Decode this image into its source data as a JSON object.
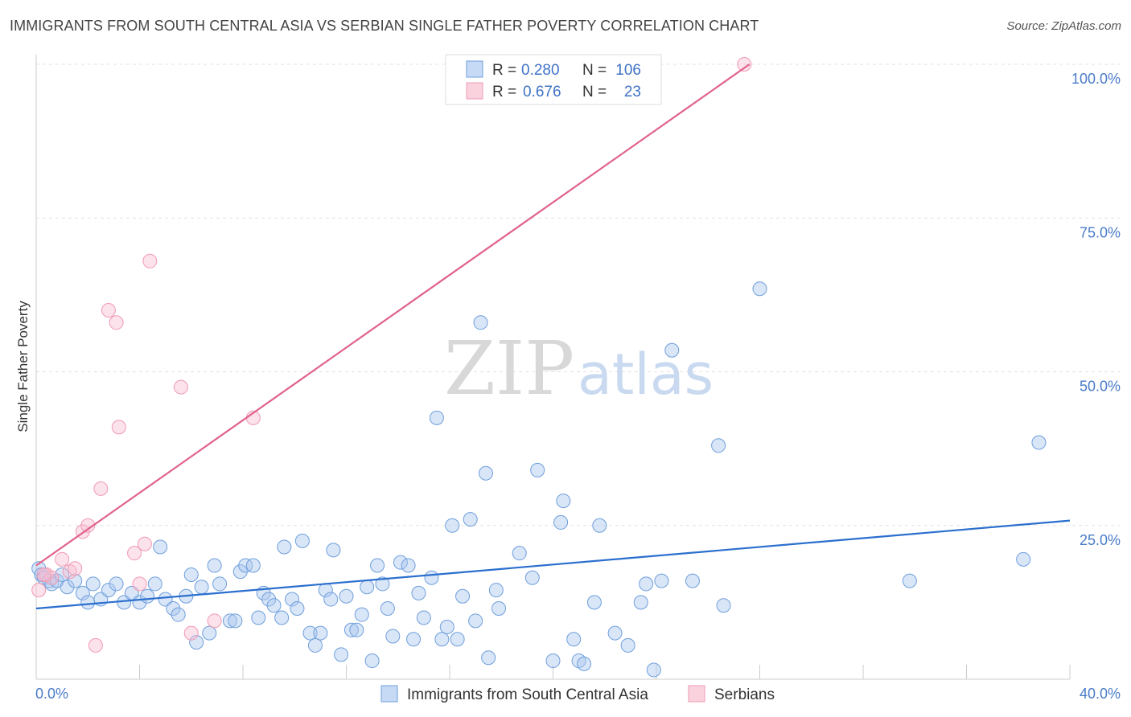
{
  "title": "IMMIGRANTS FROM SOUTH CENTRAL ASIA VS SERBIAN SINGLE FATHER POVERTY CORRELATION CHART",
  "source": "Source: ZipAtlas.com",
  "watermark": {
    "zip": "ZIP",
    "atlas": "atlas"
  },
  "colors": {
    "blue": "#6f9fdc",
    "blue_line": "#2b6fce",
    "pink": "#f09ab4",
    "pink_line": "#e0628b"
  },
  "chart_data": {
    "type": "scatter",
    "ylabel": "Single Father Poverty",
    "xlim": [
      0,
      40
    ],
    "ylim": [
      0,
      100
    ],
    "x_tick_labels": [
      "0.0%",
      "40.0%"
    ],
    "y_ticks": [
      {
        "value": 25,
        "label": "25.0%"
      },
      {
        "value": 50,
        "label": "50.0%"
      },
      {
        "value": 75,
        "label": "75.0%"
      },
      {
        "value": 100,
        "label": "100.0%"
      }
    ],
    "legend": [
      {
        "r_label": "R =",
        "r_value": "0.280",
        "n_label": "N =",
        "n_value": "106"
      },
      {
        "r_label": "R =",
        "r_value": "0.676",
        "n_label": "N =",
        "n_value": "23"
      }
    ],
    "series": [
      {
        "name": "Immigrants from South Central Asia",
        "trend": [
          [
            0,
            11.5
          ],
          [
            40,
            25.8
          ]
        ],
        "points": [
          [
            0.1,
            18
          ],
          [
            0.2,
            17
          ],
          [
            0.3,
            16.5
          ],
          [
            0.5,
            16
          ],
          [
            0.6,
            15.5
          ],
          [
            0.8,
            16
          ],
          [
            1.0,
            17
          ],
          [
            1.2,
            15
          ],
          [
            1.5,
            16
          ],
          [
            1.8,
            14
          ],
          [
            2.0,
            12.5
          ],
          [
            2.2,
            15.5
          ],
          [
            2.5,
            13
          ],
          [
            2.8,
            14.5
          ],
          [
            3.1,
            15.5
          ],
          [
            3.4,
            12.5
          ],
          [
            3.7,
            14
          ],
          [
            4.0,
            12.5
          ],
          [
            4.3,
            13.5
          ],
          [
            4.6,
            15.5
          ],
          [
            4.8,
            21.5
          ],
          [
            5.0,
            13
          ],
          [
            5.3,
            11.5
          ],
          [
            5.5,
            10.5
          ],
          [
            5.8,
            13.5
          ],
          [
            6.0,
            17
          ],
          [
            6.2,
            6
          ],
          [
            6.4,
            15
          ],
          [
            6.7,
            7.5
          ],
          [
            6.9,
            18.5
          ],
          [
            7.1,
            15.5
          ],
          [
            7.5,
            9.5
          ],
          [
            7.7,
            9.5
          ],
          [
            7.9,
            17.5
          ],
          [
            8.1,
            18.5
          ],
          [
            8.4,
            18.5
          ],
          [
            8.6,
            10
          ],
          [
            8.8,
            14
          ],
          [
            9.0,
            13
          ],
          [
            9.2,
            12
          ],
          [
            9.5,
            10
          ],
          [
            9.6,
            21.5
          ],
          [
            9.9,
            13
          ],
          [
            10.1,
            11.5
          ],
          [
            10.3,
            22.5
          ],
          [
            10.6,
            7.5
          ],
          [
            10.8,
            5.5
          ],
          [
            11.0,
            7.5
          ],
          [
            11.2,
            14.5
          ],
          [
            11.4,
            13
          ],
          [
            11.5,
            21
          ],
          [
            11.8,
            4
          ],
          [
            12.0,
            13.5
          ],
          [
            12.2,
            8
          ],
          [
            12.4,
            8
          ],
          [
            12.6,
            10.5
          ],
          [
            12.8,
            15
          ],
          [
            13.0,
            3
          ],
          [
            13.2,
            18.5
          ],
          [
            13.4,
            15.5
          ],
          [
            13.6,
            11.5
          ],
          [
            13.8,
            7
          ],
          [
            14.1,
            19
          ],
          [
            14.4,
            18.5
          ],
          [
            14.6,
            6.5
          ],
          [
            14.8,
            14
          ],
          [
            15.0,
            10
          ],
          [
            15.3,
            16.5
          ],
          [
            15.5,
            42.5
          ],
          [
            15.7,
            6.5
          ],
          [
            15.9,
            8.5
          ],
          [
            16.1,
            25
          ],
          [
            16.3,
            6.5
          ],
          [
            16.5,
            13.5
          ],
          [
            16.8,
            26
          ],
          [
            17.0,
            9.5
          ],
          [
            17.2,
            58
          ],
          [
            17.4,
            33.5
          ],
          [
            17.5,
            3.5
          ],
          [
            17.8,
            14.5
          ],
          [
            17.9,
            11.5
          ],
          [
            18.7,
            20.5
          ],
          [
            19.2,
            16.5
          ],
          [
            19.4,
            34
          ],
          [
            20.0,
            3
          ],
          [
            20.3,
            25.5
          ],
          [
            20.4,
            29
          ],
          [
            20.8,
            6.5
          ],
          [
            21.0,
            3
          ],
          [
            21.2,
            2.5
          ],
          [
            21.6,
            12.5
          ],
          [
            21.8,
            25
          ],
          [
            22.4,
            7.5
          ],
          [
            22.9,
            5.5
          ],
          [
            23.4,
            12.5
          ],
          [
            23.6,
            15.5
          ],
          [
            23.9,
            1.5
          ],
          [
            24.2,
            16
          ],
          [
            24.6,
            53.5
          ],
          [
            25.4,
            16
          ],
          [
            26.4,
            38
          ],
          [
            26.6,
            12
          ],
          [
            28.0,
            63.5
          ],
          [
            33.8,
            16
          ],
          [
            38.2,
            19.5
          ],
          [
            38.8,
            38.5
          ]
        ]
      },
      {
        "name": "Serbians",
        "trend": [
          [
            0,
            18.5
          ],
          [
            27.6,
            100
          ]
        ],
        "points": [
          [
            0.1,
            14.5
          ],
          [
            0.4,
            17
          ],
          [
            0.6,
            16.5
          ],
          [
            1.0,
            19.5
          ],
          [
            1.3,
            17.5
          ],
          [
            1.5,
            18
          ],
          [
            1.8,
            24
          ],
          [
            2.0,
            25
          ],
          [
            2.3,
            5.5
          ],
          [
            2.5,
            31
          ],
          [
            2.8,
            60
          ],
          [
            3.1,
            58
          ],
          [
            3.2,
            41
          ],
          [
            3.8,
            20.5
          ],
          [
            4.0,
            15.5
          ],
          [
            4.2,
            22
          ],
          [
            4.4,
            68
          ],
          [
            5.6,
            47.5
          ],
          [
            6.0,
            7.5
          ],
          [
            6.9,
            9.5
          ],
          [
            8.4,
            42.5
          ],
          [
            27.4,
            100
          ],
          [
            0.3,
            17
          ]
        ]
      }
    ]
  }
}
